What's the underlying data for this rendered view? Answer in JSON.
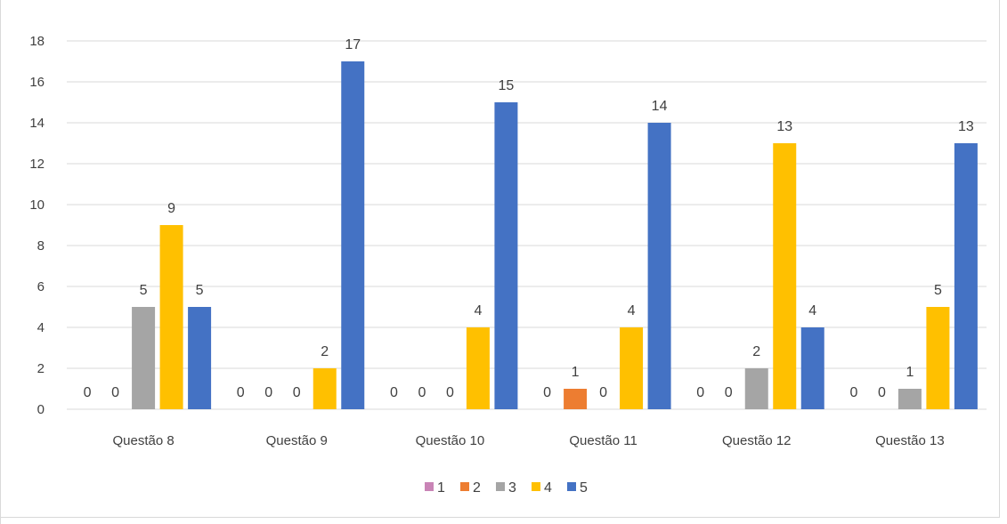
{
  "chart_data": {
    "type": "bar",
    "categories": [
      "Questão 8",
      "Questão 9",
      "Questão 10",
      "Questão 11",
      "Questão 12",
      "Questão 13"
    ],
    "series": [
      {
        "name": "1",
        "values": [
          0,
          0,
          0,
          0,
          0,
          0
        ],
        "color": "#c984b6"
      },
      {
        "name": "2",
        "values": [
          0,
          0,
          0,
          1,
          0,
          0
        ],
        "color": "#ed7d31"
      },
      {
        "name": "3",
        "values": [
          5,
          0,
          0,
          0,
          2,
          1
        ],
        "color": "#a5a5a5"
      },
      {
        "name": "4",
        "values": [
          9,
          2,
          4,
          4,
          13,
          5
        ],
        "color": "#ffc000"
      },
      {
        "name": "5",
        "values": [
          5,
          17,
          15,
          14,
          4,
          13
        ],
        "color": "#4472c4"
      }
    ],
    "data_labels": [
      [
        "0",
        "0",
        "5",
        "9",
        "5"
      ],
      [
        "0",
        "0",
        "0",
        "2",
        "17"
      ],
      [
        "0",
        "0",
        "0",
        "4",
        "15"
      ],
      [
        "0",
        "1",
        "0",
        "4",
        "14"
      ],
      [
        "0",
        "0",
        "2",
        "13",
        "4"
      ],
      [
        "0",
        "0",
        "1",
        "5",
        "13"
      ]
    ],
    "ylim": [
      0,
      18
    ],
    "yticks": [
      0,
      2,
      4,
      6,
      8,
      10,
      12,
      14,
      16,
      18
    ],
    "ytick_labels": [
      "0",
      "2",
      "4",
      "6",
      "8",
      "10",
      "12",
      "14",
      "16",
      "18"
    ],
    "grid": true,
    "legend": "bottom",
    "title": "",
    "xlabel": "",
    "ylabel": ""
  }
}
